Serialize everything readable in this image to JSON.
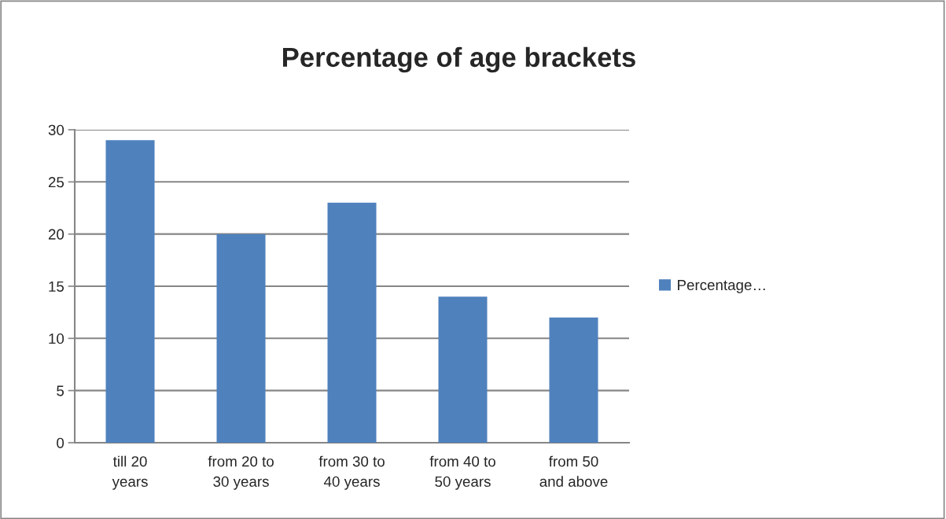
{
  "chart_data": {
    "type": "bar",
    "title": "Percentage of age brackets",
    "categories": [
      "till 20 years",
      "from 20 to 30 years",
      "from 30 to 40 years",
      "from 40 to 50 years",
      "from 50 and above"
    ],
    "series": [
      {
        "name": "Percentage…",
        "color": "#4f81bd",
        "values": [
          29,
          20,
          23,
          14,
          12
        ]
      }
    ],
    "ylim": [
      0,
      30
    ],
    "yticks": [
      0,
      5,
      10,
      15,
      20,
      25,
      30
    ],
    "grid": "y",
    "legend": "right"
  }
}
